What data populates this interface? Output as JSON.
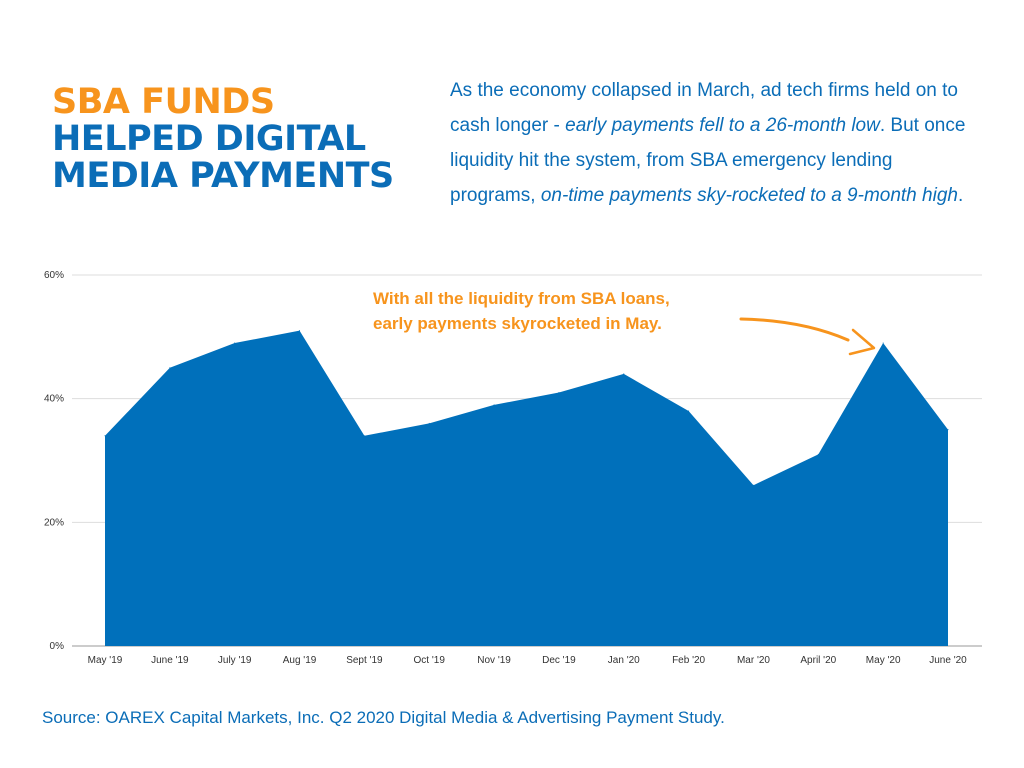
{
  "title": {
    "line1": "SBA FUNDS",
    "line2": "HELPED DIGITAL",
    "line3": "MEDIA PAYMENTS"
  },
  "intro": {
    "p1": "As the economy collapsed in March, ad tech firms held on to cash longer - ",
    "p2": "early payments fell to a 26-month low",
    "p3": ". But once liquidity hit the system, from SBA emergency lending programs, ",
    "p4": "on-time payments sky-rocketed to a 9-month high",
    "p5": "."
  },
  "annotation": {
    "line1": "With all the liquidity from SBA loans,",
    "line2": "early payments skyrocketed in May."
  },
  "source": "Source: OAREX Capital Markets, Inc. Q2 2020 Digital Media & Advertising Payment Study.",
  "chart_data": {
    "type": "area",
    "categories": [
      "May '19",
      "June '19",
      "July '19",
      "Aug '19",
      "Sept '19",
      "Oct '19",
      "Nov '19",
      "Dec '19",
      "Jan '20",
      "Feb '20",
      "Mar '20",
      "April '20",
      "May '20",
      "June '20"
    ],
    "values": [
      34,
      45,
      49,
      51,
      34,
      36,
      39,
      41,
      44,
      38,
      26,
      31,
      49,
      35
    ],
    "y_ticks": [
      "0%",
      "20%",
      "40%",
      "60%"
    ],
    "ylim": [
      0,
      60
    ],
    "grid": true,
    "color": "#0070bb"
  }
}
